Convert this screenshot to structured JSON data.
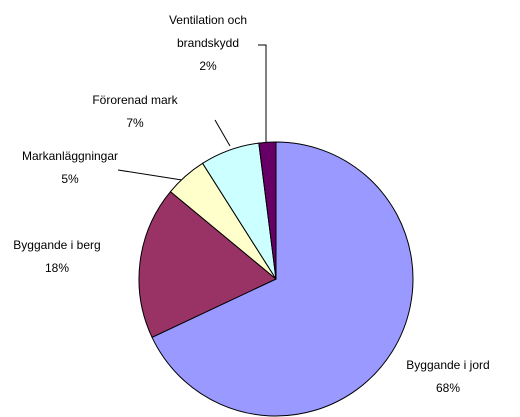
{
  "chart_data": {
    "type": "pie",
    "categories": [
      "Byggande i jord",
      "Byggande i berg",
      "Markanläggningar",
      "Förorenad mark",
      "Ventilation och brandskydd"
    ],
    "values": [
      68,
      18,
      5,
      7,
      2
    ],
    "value_labels": [
      "68%",
      "18%",
      "5%",
      "7%",
      "2%"
    ],
    "colors": [
      "#9999ff",
      "#993366",
      "#ffffcc",
      "#ccffff",
      "#660066"
    ]
  }
}
